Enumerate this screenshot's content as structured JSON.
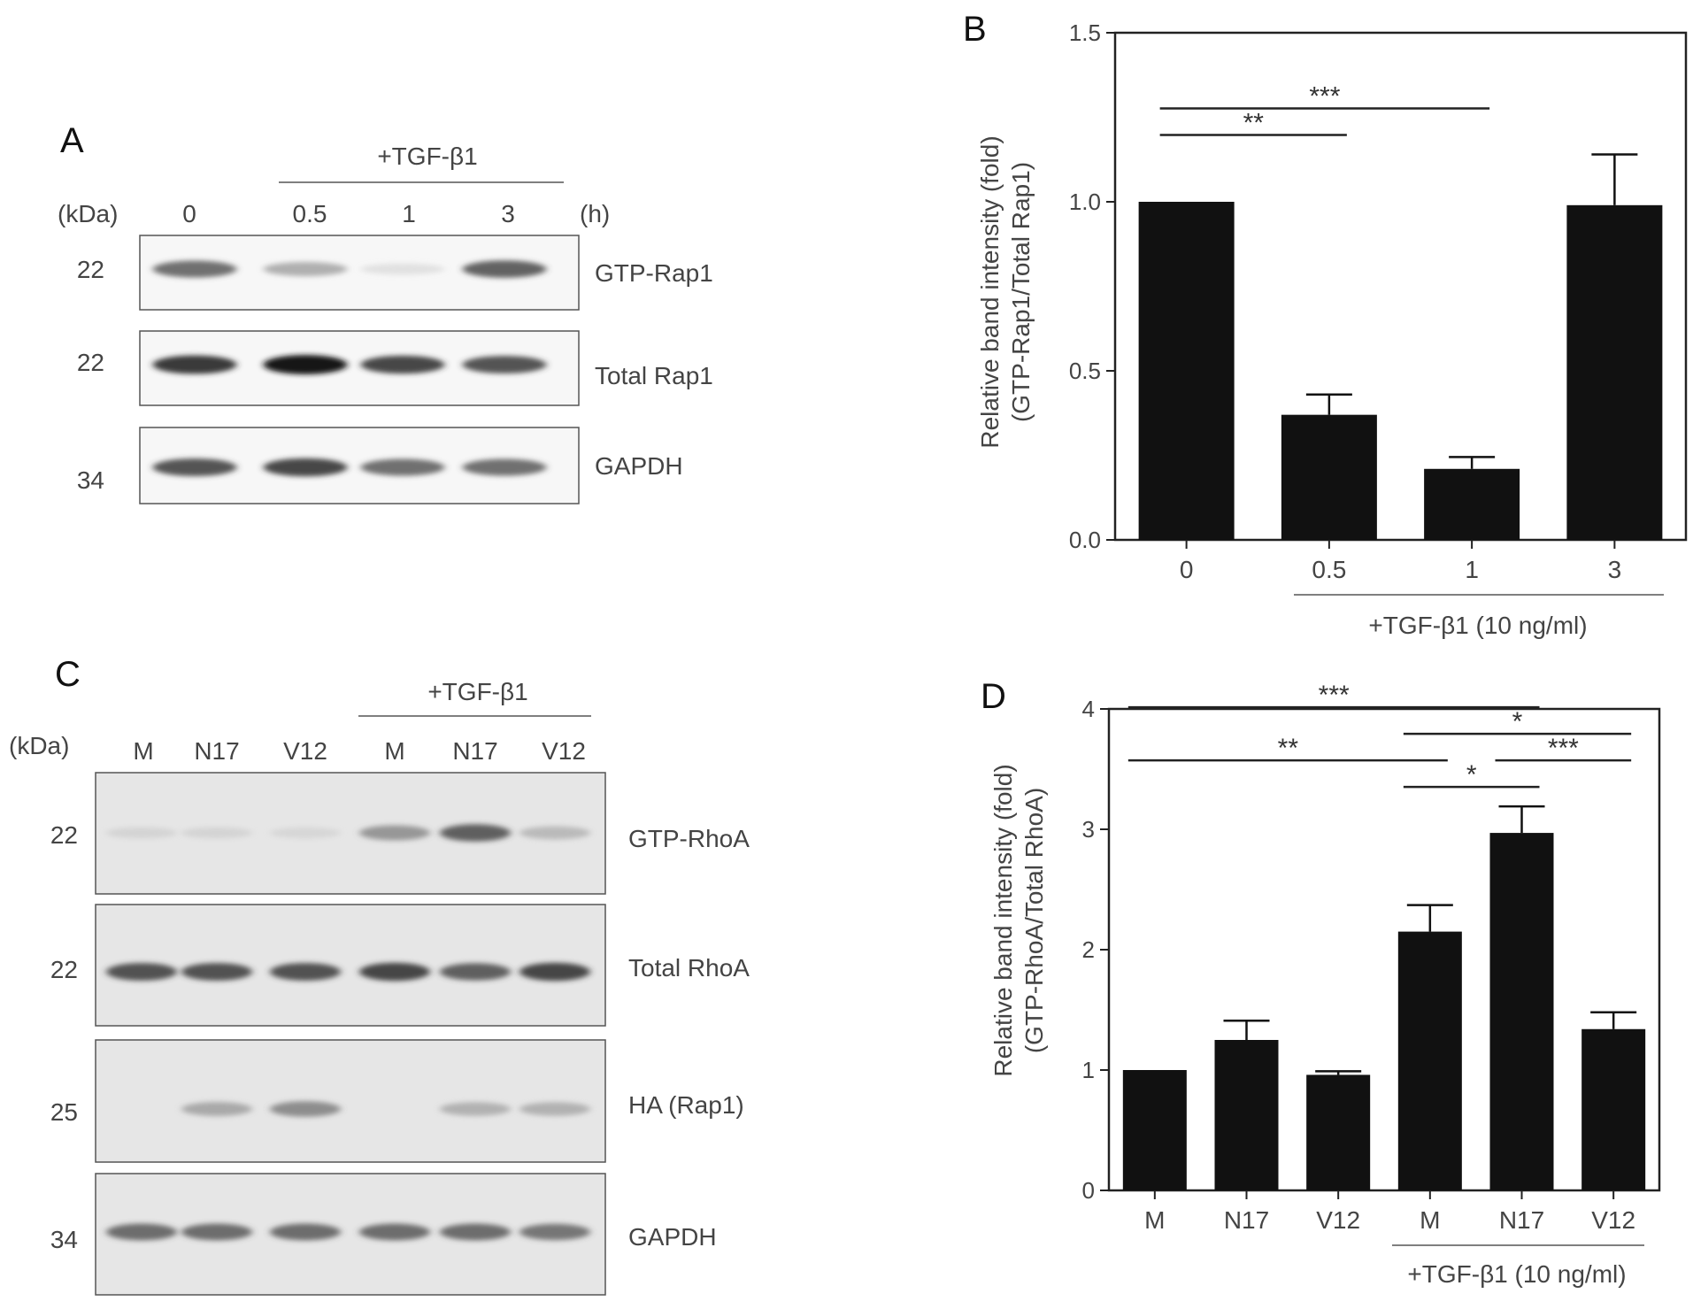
{
  "panel_a": {
    "letter": "A",
    "treatment_label": "+TGF-β1",
    "kda_label": "(kDa)",
    "unit_label": "(h)",
    "lanes": [
      "0",
      "0.5",
      "1",
      "3"
    ],
    "blots": [
      {
        "kda": "22",
        "name": "GTP-Rap1",
        "intensity": [
          0.7,
          0.4,
          0.05,
          0.75
        ]
      },
      {
        "kda": "22",
        "name": "Total Rap1",
        "intensity": [
          0.9,
          1.0,
          0.85,
          0.8
        ]
      },
      {
        "kda": "34",
        "name": "GAPDH",
        "intensity": [
          0.8,
          0.85,
          0.7,
          0.7
        ]
      }
    ]
  },
  "panel_c": {
    "letter": "C",
    "treatment_label": "+TGF-β1",
    "kda_label": "(kDa)",
    "lanes": [
      "M",
      "N17",
      "V12",
      "M",
      "N17",
      "V12"
    ],
    "blots": [
      {
        "kda": "22",
        "name": "GTP-RhoA",
        "intensity": [
          0.08,
          0.08,
          0.05,
          0.5,
          0.75,
          0.3
        ]
      },
      {
        "kda": "22",
        "name": "Total RhoA",
        "intensity": [
          0.8,
          0.8,
          0.8,
          0.85,
          0.75,
          0.85
        ]
      },
      {
        "kda": "25",
        "name": "HA (Rap1)",
        "intensity": [
          0.02,
          0.4,
          0.55,
          0.02,
          0.35,
          0.35
        ]
      },
      {
        "kda": "34",
        "name": "GAPDH",
        "intensity": [
          0.7,
          0.7,
          0.7,
          0.7,
          0.7,
          0.65
        ]
      }
    ]
  },
  "chart_data": [
    {
      "panel": "B",
      "type": "bar",
      "categories": [
        "0",
        "0.5",
        "1",
        "3"
      ],
      "values": [
        1.0,
        0.37,
        0.21,
        0.99
      ],
      "errors": [
        0,
        0.06,
        0.035,
        0.15
      ],
      "ylabel_line1": "Relative band intensity (fold)",
      "ylabel_line2": "(GTP-Rap1/Total Rap1)",
      "ylim": [
        0,
        1.5
      ],
      "yticks": [
        "0.0",
        "0.5",
        "1.0",
        "1.5"
      ],
      "group_label": "+TGF-β1 (10 ng/ml)",
      "significance": [
        {
          "from": 0,
          "to": 1,
          "label": "**"
        },
        {
          "from": 0,
          "to": 2,
          "label": "***"
        }
      ]
    },
    {
      "panel": "D",
      "type": "bar",
      "categories": [
        "M",
        "N17",
        "V12",
        "M",
        "N17",
        "V12"
      ],
      "values": [
        1.0,
        1.25,
        0.96,
        2.15,
        2.97,
        1.34
      ],
      "errors": [
        0,
        0.16,
        0.03,
        0.22,
        0.22,
        0.14
      ],
      "ylabel_line1": "Relative band intensity (fold)",
      "ylabel_line2": "(GTP-RhoA/Total RhoA)",
      "ylim": [
        0,
        4
      ],
      "yticks": [
        "0",
        "1",
        "2",
        "3",
        "4"
      ],
      "group_label": "+TGF-β1 (10 ng/ml)",
      "significance": [
        {
          "from": 0,
          "to": 3,
          "label": "**"
        },
        {
          "from": 0,
          "to": 4,
          "label": "***"
        },
        {
          "from": 3,
          "to": 4,
          "label": "*"
        },
        {
          "from": 4,
          "to": 5,
          "label": "***"
        },
        {
          "from": 3,
          "to": 5,
          "label": "*"
        }
      ]
    }
  ]
}
